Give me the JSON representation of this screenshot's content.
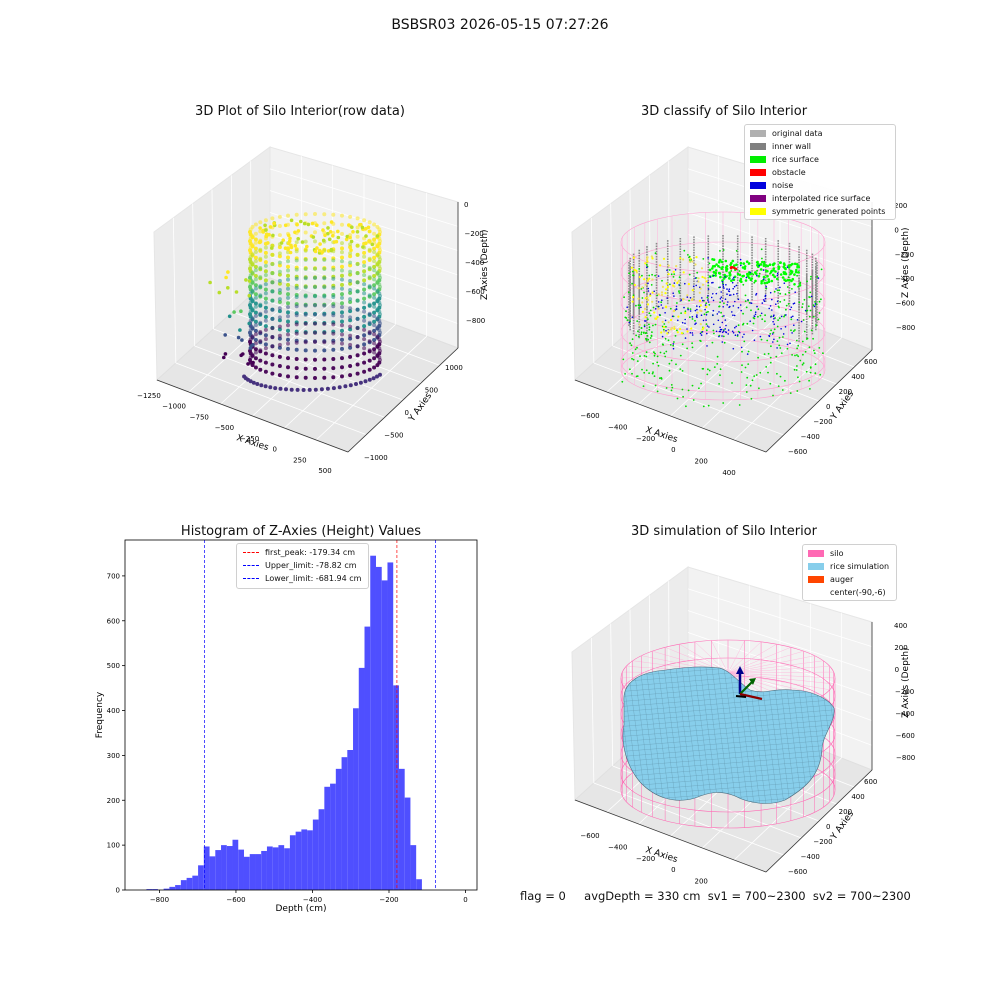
{
  "figure": {
    "suptitle": "BSBSR03 2026-05-15 07:27:26"
  },
  "panels": {
    "raw": {
      "title": "3D Plot of Silo Interior(row data)",
      "xlabel": "X Axies",
      "ylabel": "Y Axies",
      "zlabel": "Z Axies (Depth)",
      "xticks": [
        "−1250",
        "−1000",
        "−750",
        "−500",
        "−250",
        "0",
        "250",
        "500"
      ],
      "yticks": [
        "−1000",
        "−500",
        "0",
        "500",
        "1000"
      ],
      "zticks": [
        "0",
        "−200",
        "−400",
        "−600",
        "−800"
      ]
    },
    "classify": {
      "title": "3D classify of Silo Interior",
      "xlabel": "X Axies",
      "ylabel": "Y Axies",
      "zlabel": "Z Axies (Depth)",
      "xticks": [
        "−600",
        "−400",
        "−200",
        "0",
        "200",
        "400"
      ],
      "yticks": [
        "−600",
        "−400",
        "−200",
        "0",
        "200",
        "400",
        "600"
      ],
      "zticks": [
        "200",
        "0",
        "−200",
        "−400",
        "−600",
        "−800"
      ],
      "legend": [
        {
          "label": "original data",
          "color": "#b0b0b0"
        },
        {
          "label": "inner wall",
          "color": "#808080"
        },
        {
          "label": "rice surface",
          "color": "#00ee00"
        },
        {
          "label": "obstacle",
          "color": "#ff0000"
        },
        {
          "label": "noise",
          "color": "#0000dd"
        },
        {
          "label": "interpolated rice surface",
          "color": "#800080"
        },
        {
          "label": "symmetric generated points",
          "color": "#ffff00"
        }
      ]
    },
    "simulation": {
      "title": "3D simulation of Silo Interior",
      "xlabel": "X Axies",
      "ylabel": "Y Axies",
      "zlabel": "Z Axies (Depth)",
      "xticks": [
        "−600",
        "−400",
        "−200",
        "0",
        "200",
        "400"
      ],
      "yticks": [
        "−600",
        "−400",
        "−200",
        "0",
        "200",
        "400",
        "600"
      ],
      "zticks": [
        "400",
        "200",
        "0",
        "−200",
        "−400",
        "−600",
        "−800"
      ],
      "legend": [
        {
          "label": "silo",
          "color": "#ff69b4"
        },
        {
          "label": "rice simulation",
          "color": "#87ceeb"
        },
        {
          "label": "auger",
          "color": "#ff4500"
        },
        {
          "label": "center(-90,-6)",
          "color": ""
        }
      ]
    }
  },
  "footer": {
    "flag": "flag = 0",
    "stats": "avgDepth = 330 cm  sv1 = 700~2300  sv2 = 700~2300"
  },
  "chart_data": [
    {
      "type": "scatter",
      "title": "3D Plot of Silo Interior(row data)",
      "xlabel": "X Axies",
      "ylabel": "Y Axies",
      "zlabel": "Z Axies (Depth)",
      "xlim": [
        -1250,
        500
      ],
      "ylim": [
        -1000,
        1000
      ],
      "zlim": [
        -900,
        0
      ],
      "colormap": "viridis"
    },
    {
      "type": "scatter",
      "title": "3D classify of Silo Interior",
      "xlabel": "X Axies",
      "ylabel": "Y Axies",
      "zlabel": "Z Axies (Depth)",
      "xlim": [
        -700,
        500
      ],
      "ylim": [
        -700,
        700
      ],
      "zlim": [
        -900,
        300
      ],
      "legend_position": "top-right",
      "series": [
        {
          "name": "original data",
          "color": "#b0b0b0"
        },
        {
          "name": "inner wall",
          "color": "#808080"
        },
        {
          "name": "rice surface",
          "color": "#00ee00"
        },
        {
          "name": "obstacle",
          "color": "#ff0000"
        },
        {
          "name": "noise",
          "color": "#0000dd"
        },
        {
          "name": "interpolated rice surface",
          "color": "#800080"
        },
        {
          "name": "symmetric generated points",
          "color": "#ffff00"
        }
      ]
    },
    {
      "type": "bar",
      "title": "Histogram of Z-Axies (Height) Values",
      "xlabel": "Depth (cm)",
      "ylabel": "Frequency",
      "xlim": [
        -890,
        30
      ],
      "ylim": [
        0,
        780
      ],
      "xticks": [
        -800,
        -600,
        -400,
        -200,
        0
      ],
      "yticks": [
        0,
        100,
        200,
        300,
        400,
        500,
        600,
        700
      ],
      "bar_color": "#4b4bff",
      "bin_start": -834,
      "bin_width": 15,
      "values": [
        2,
        2,
        0,
        3,
        7,
        11,
        22,
        27,
        32,
        55,
        97,
        75,
        89,
        100,
        98,
        112,
        90,
        74,
        80,
        80,
        87,
        97,
        95,
        100,
        93,
        122,
        130,
        135,
        133,
        157,
        180,
        230,
        237,
        270,
        296,
        312,
        405,
        495,
        587,
        745,
        720,
        690,
        730,
        456,
        270,
        206,
        100,
        24
      ],
      "vlines": [
        {
          "label": "first_peak: -179.34 cm",
          "x": -179.34,
          "color": "#ff0000"
        },
        {
          "label": "Upper_limit: -78.82 cm",
          "x": -78.82,
          "color": "#0000ff"
        },
        {
          "label": "Lower_limit: -681.94 cm",
          "x": -681.94,
          "color": "#0000ff"
        }
      ],
      "legend_position": "top-center"
    },
    {
      "type": "surface",
      "title": "3D simulation of Silo Interior",
      "xlabel": "X Axies",
      "ylabel": "Y Axies",
      "zlabel": "Z Axies (Depth)",
      "xlim": [
        -700,
        500
      ],
      "ylim": [
        -700,
        700
      ],
      "zlim": [
        -900,
        500
      ],
      "legend_position": "top-right",
      "series": [
        {
          "name": "silo",
          "color": "#ff69b4"
        },
        {
          "name": "rice simulation",
          "color": "#87ceeb"
        },
        {
          "name": "auger",
          "color": "#ff4500"
        },
        {
          "name": "center(-90,-6)"
        }
      ]
    }
  ]
}
